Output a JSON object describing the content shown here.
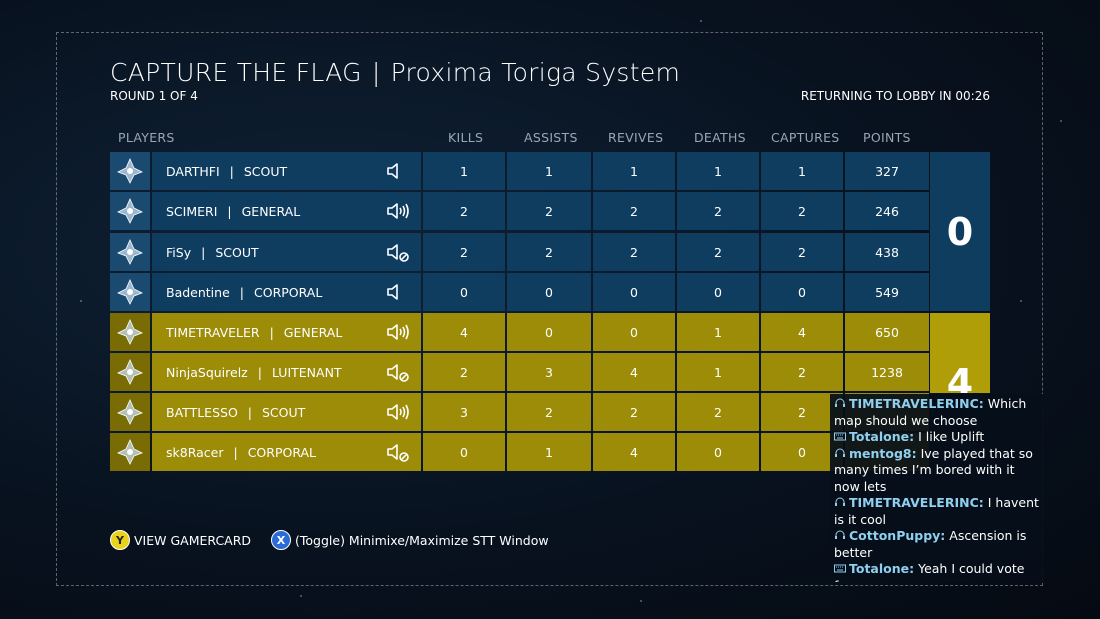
{
  "header": {
    "mode": "CAPTURE THE FLAG",
    "separator": "|",
    "map": "Proxima Toriga System",
    "round": "ROUND 1 OF 4",
    "timer": "RETURNING TO LOBBY IN 00:26"
  },
  "columns": {
    "players": "PLAYERS",
    "kills": "KILLS",
    "assists": "ASSISTS",
    "revives": "REVIVES",
    "deaths": "DEATHS",
    "captures": "CAPTURES",
    "points": "POINTS"
  },
  "players": [
    {
      "name": "DARTHFI",
      "rank": "SCOUT",
      "kills": "1",
      "assists": "1",
      "revives": "1",
      "deaths": "1",
      "captures": "1",
      "points": "327"
    },
    {
      "name": "SCIMERI",
      "rank": "GENERAL",
      "kills": "2",
      "assists": "2",
      "revives": "2",
      "deaths": "2",
      "captures": "2",
      "points": "246"
    },
    {
      "name": "FiSy",
      "rank": "SCOUT",
      "kills": "2",
      "assists": "2",
      "revives": "2",
      "deaths": "2",
      "captures": "2",
      "points": "438"
    },
    {
      "name": "Badentine",
      "rank": "CORPORAL",
      "kills": "0",
      "assists": "0",
      "revives": "0",
      "deaths": "0",
      "captures": "0",
      "points": "549"
    },
    {
      "name": "TIMETRAVELER",
      "rank": "GENERAL",
      "kills": "4",
      "assists": "0",
      "revives": "0",
      "deaths": "1",
      "captures": "4",
      "points": "650"
    },
    {
      "name": "NinjaSquirelz",
      "rank": "LUITENANT",
      "kills": "2",
      "assists": "3",
      "revives": "4",
      "deaths": "1",
      "captures": "2",
      "points": "1238"
    },
    {
      "name": "BATTLESSO",
      "rank": "SCOUT",
      "kills": "3",
      "assists": "2",
      "revives": "2",
      "deaths": "2",
      "captures": "2",
      "points": ""
    },
    {
      "name": "sk8Racer",
      "rank": "CORPORAL",
      "kills": "0",
      "assists": "1",
      "revives": "4",
      "deaths": "0",
      "captures": "0",
      "points": ""
    }
  ],
  "scores": {
    "blue": "0",
    "gold": "4"
  },
  "hints": {
    "y_button": "Y",
    "y_label": "VIEW GAMERCARD",
    "x_button": "X",
    "x_label": "(Toggle) Minimixe/Maximize STT Window"
  },
  "chat": [
    {
      "user": "TIMETRAVELERINC:",
      "text": " Which map should we choose"
    },
    {
      "user": "Totalone:",
      "text": " I like Uplift"
    },
    {
      "user": "mentog8:",
      "text": " Ive played that so many times I’m bored with it now lets"
    },
    {
      "user": "TIMETRAVELERINC:",
      "text": " I havent is it cool"
    },
    {
      "user": "CottonPuppy:",
      "text": " Ascension is better"
    },
    {
      "user": "Totalone:",
      "text": " Yeah I could vote for"
    }
  ],
  "colors": {
    "team_blue": "#0f3d60",
    "team_gold": "#9c8c08",
    "chat_user": "#8fd0f0"
  }
}
